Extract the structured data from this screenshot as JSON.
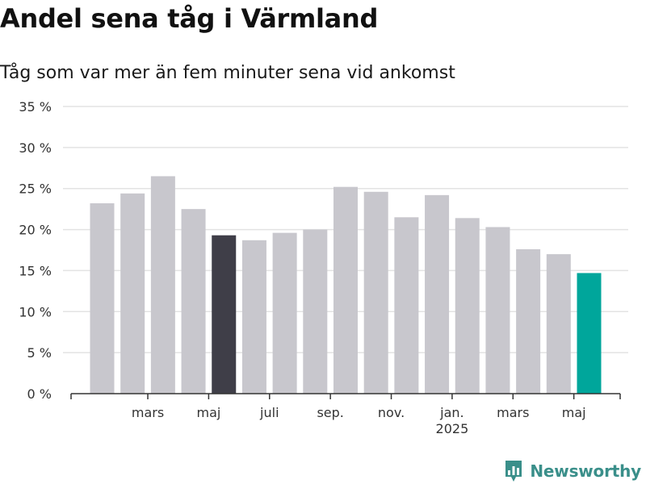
{
  "title": "Andel sena tåg i Värmland",
  "subtitle": "Tåg som var mer än fem minuter sena vid ankomst",
  "brand": {
    "name": "Newsworthy",
    "icon": "newsworthy-logo-icon",
    "color": "#3a8f8a"
  },
  "colors": {
    "default_bar": "#c8c7cd",
    "highlight_dark": "#3f3e48",
    "highlight_latest": "#00a69b",
    "grid": "#e3e3e3",
    "axis": "#333333"
  },
  "chart_data": {
    "type": "bar",
    "title": "Andel sena tåg i Värmland",
    "subtitle": "Tåg som var mer än fem minuter sena vid ankomst",
    "xlabel": "",
    "ylabel": "",
    "ylim": [
      0,
      35
    ],
    "yticks": [
      0,
      5,
      10,
      15,
      20,
      25,
      30,
      35
    ],
    "ytick_labels": [
      "0 %",
      "5 %",
      "10 %",
      "15 %",
      "20 %",
      "25 %",
      "30 %",
      "35 %"
    ],
    "grid": true,
    "legend": "none",
    "x_tick_labels": [
      {
        "label": "mars",
        "sub": "",
        "month_index": 1
      },
      {
        "label": "maj",
        "sub": "",
        "month_index": 3
      },
      {
        "label": "juli",
        "sub": "",
        "month_index": 5
      },
      {
        "label": "sep.",
        "sub": "",
        "month_index": 7
      },
      {
        "label": "nov.",
        "sub": "",
        "month_index": 9
      },
      {
        "label": "jan.",
        "sub": "2025",
        "month_index": 11
      },
      {
        "label": "mars",
        "sub": "",
        "month_index": 13
      },
      {
        "label": "maj",
        "sub": "",
        "month_index": 15
      }
    ],
    "categories": [
      "2024-02",
      "2024-03",
      "2024-04",
      "2024-05",
      "2024-06",
      "2024-07",
      "2024-08",
      "2024-09",
      "2024-10",
      "2024-11",
      "2024-12",
      "2025-01",
      "2025-02",
      "2025-03",
      "2025-04",
      "2025-05",
      "2025-06"
    ],
    "values": [
      23.2,
      24.4,
      26.5,
      22.5,
      19.3,
      18.7,
      19.6,
      20.0,
      25.2,
      24.6,
      21.5,
      24.2,
      21.4,
      20.3,
      17.6,
      17.0,
      14.7
    ],
    "highlight": {
      "2024-06": "dark",
      "2025-06": "latest"
    }
  }
}
